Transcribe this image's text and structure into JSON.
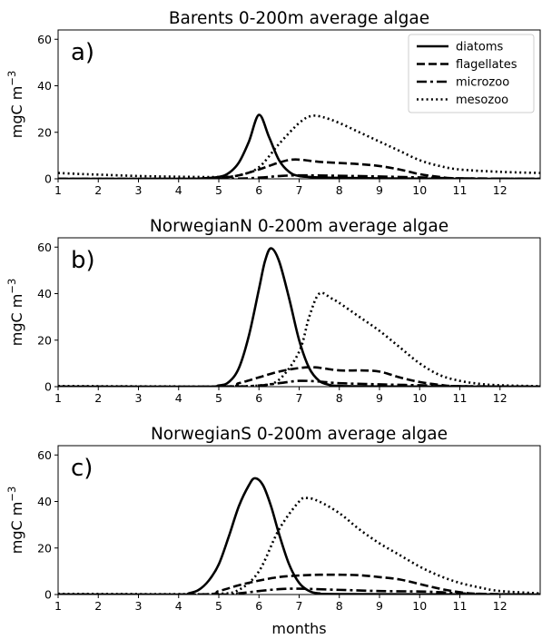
{
  "chart_data": [
    {
      "type": "line",
      "title": "Barents 0-200m average algae",
      "panel_label": "a)",
      "ylabel": "mgC m",
      "ylabel_exponent": "−3",
      "xlabel": "",
      "xlim": [
        1,
        13
      ],
      "ylim": [
        0,
        64
      ],
      "xticks": [
        "1",
        "2",
        "3",
        "4",
        "5",
        "6",
        "7",
        "8",
        "9",
        "10",
        "11",
        "12"
      ],
      "yticks": [
        "0",
        "20",
        "40",
        "60"
      ],
      "legend_position": "top-right",
      "series": [
        {
          "name": "diatoms",
          "style": "solid",
          "points": [
            [
              1,
              0
            ],
            [
              4,
              0
            ],
            [
              4.5,
              0.1
            ],
            [
              5,
              0.8
            ],
            [
              5.25,
              2.5
            ],
            [
              5.5,
              7
            ],
            [
              5.75,
              16
            ],
            [
              6.0,
              27.5
            ],
            [
              6.25,
              18
            ],
            [
              6.5,
              8
            ],
            [
              6.75,
              3
            ],
            [
              7,
              1.2
            ],
            [
              7.5,
              0.6
            ],
            [
              8,
              0.4
            ],
            [
              9,
              0.2
            ],
            [
              10,
              0.1
            ],
            [
              11,
              0
            ],
            [
              13,
              0
            ]
          ]
        },
        {
          "name": "flagellates",
          "style": "dashed",
          "points": [
            [
              1,
              0
            ],
            [
              4,
              0
            ],
            [
              5,
              0.4
            ],
            [
              5.5,
              1.5
            ],
            [
              6,
              4
            ],
            [
              6.5,
              7
            ],
            [
              6.9,
              8.3
            ],
            [
              7.5,
              7.3
            ],
            [
              8,
              6.8
            ],
            [
              8.5,
              6.3
            ],
            [
              9,
              5.5
            ],
            [
              9.5,
              4
            ],
            [
              10,
              2
            ],
            [
              10.5,
              0.8
            ],
            [
              11,
              0.2
            ],
            [
              13,
              0
            ]
          ]
        },
        {
          "name": "microzoo",
          "style": "dashdot",
          "points": [
            [
              1,
              0
            ],
            [
              5,
              0
            ],
            [
              6,
              0.5
            ],
            [
              6.5,
              1.2
            ],
            [
              7,
              1.5
            ],
            [
              8,
              1.3
            ],
            [
              9,
              1
            ],
            [
              10,
              0.6
            ],
            [
              11,
              0.2
            ],
            [
              13,
              0
            ]
          ]
        },
        {
          "name": "mesozoo",
          "style": "dotted",
          "points": [
            [
              1,
              2.5
            ],
            [
              1.5,
              2.1
            ],
            [
              2,
              1.8
            ],
            [
              3,
              1.2
            ],
            [
              4,
              0.9
            ],
            [
              5,
              0.8
            ],
            [
              5.5,
              1.5
            ],
            [
              6,
              5
            ],
            [
              6.5,
              15
            ],
            [
              7,
              24
            ],
            [
              7.3,
              27
            ],
            [
              7.6,
              26.5
            ],
            [
              8,
              24
            ],
            [
              8.5,
              20
            ],
            [
              9,
              16
            ],
            [
              9.5,
              12
            ],
            [
              10,
              8
            ],
            [
              10.5,
              5.5
            ],
            [
              11,
              4
            ],
            [
              12,
              3
            ],
            [
              13,
              2.5
            ]
          ]
        }
      ]
    },
    {
      "type": "line",
      "title": "NorwegianN 0-200m average algae",
      "panel_label": "b)",
      "ylabel": "mgC m",
      "ylabel_exponent": "−3",
      "xlabel": "",
      "xlim": [
        1,
        13
      ],
      "ylim": [
        0,
        64
      ],
      "xticks": [
        "1",
        "2",
        "3",
        "4",
        "5",
        "6",
        "7",
        "8",
        "9",
        "10",
        "11",
        "12"
      ],
      "yticks": [
        "0",
        "20",
        "40",
        "60"
      ],
      "series": [
        {
          "name": "diatoms",
          "style": "solid",
          "points": [
            [
              1,
              0
            ],
            [
              4.5,
              0
            ],
            [
              5,
              0.5
            ],
            [
              5.25,
              2
            ],
            [
              5.5,
              8
            ],
            [
              5.75,
              22
            ],
            [
              6,
              42
            ],
            [
              6.15,
              54
            ],
            [
              6.3,
              59.5
            ],
            [
              6.5,
              54
            ],
            [
              6.75,
              38
            ],
            [
              7,
              20
            ],
            [
              7.25,
              8
            ],
            [
              7.5,
              2.5
            ],
            [
              7.75,
              0.8
            ],
            [
              8,
              0.3
            ],
            [
              9,
              0.1
            ],
            [
              13,
              0
            ]
          ]
        },
        {
          "name": "flagellates",
          "style": "dashed",
          "points": [
            [
              1,
              0
            ],
            [
              5,
              0
            ],
            [
              5.5,
              1.5
            ],
            [
              6,
              4
            ],
            [
              6.5,
              6.5
            ],
            [
              7,
              8
            ],
            [
              7.4,
              8.3
            ],
            [
              8,
              7
            ],
            [
              8.5,
              7
            ],
            [
              9,
              6.5
            ],
            [
              9.5,
              4
            ],
            [
              10,
              2
            ],
            [
              10.5,
              0.8
            ],
            [
              11,
              0.2
            ],
            [
              13,
              0
            ]
          ]
        },
        {
          "name": "microzoo",
          "style": "dashdot",
          "points": [
            [
              1,
              0
            ],
            [
              5,
              0
            ],
            [
              6,
              0.5
            ],
            [
              6.5,
              1.5
            ],
            [
              7,
              2.5
            ],
            [
              7.5,
              2.2
            ],
            [
              8,
              1.5
            ],
            [
              9,
              1
            ],
            [
              10,
              0.6
            ],
            [
              11,
              0.2
            ],
            [
              13,
              0
            ]
          ]
        },
        {
          "name": "mesozoo",
          "style": "dotted",
          "points": [
            [
              1,
              0.3
            ],
            [
              2,
              0.2
            ],
            [
              4,
              0.1
            ],
            [
              5,
              0.1
            ],
            [
              6,
              0.5
            ],
            [
              6.5,
              3
            ],
            [
              7,
              15
            ],
            [
              7.25,
              30
            ],
            [
              7.5,
              40
            ],
            [
              7.8,
              38
            ],
            [
              8,
              36
            ],
            [
              8.5,
              30
            ],
            [
              9,
              24
            ],
            [
              9.5,
              17
            ],
            [
              10,
              10
            ],
            [
              10.5,
              5
            ],
            [
              11,
              2.5
            ],
            [
              11.5,
              1.2
            ],
            [
              12,
              0.6
            ],
            [
              13,
              0.2
            ]
          ]
        }
      ]
    },
    {
      "type": "line",
      "title": "NorwegianS 0-200m average algae",
      "panel_label": "c)",
      "ylabel": "mgC m",
      "ylabel_exponent": "−3",
      "xlabel": "months",
      "xlim": [
        1,
        13
      ],
      "ylim": [
        0,
        64
      ],
      "xticks": [
        "1",
        "2",
        "3",
        "4",
        "5",
        "6",
        "7",
        "8",
        "9",
        "10",
        "11",
        "12"
      ],
      "yticks": [
        "0",
        "20",
        "40",
        "60"
      ],
      "series": [
        {
          "name": "diatoms",
          "style": "solid",
          "points": [
            [
              1,
              0
            ],
            [
              4,
              0
            ],
            [
              4.25,
              0.5
            ],
            [
              4.5,
              2
            ],
            [
              4.75,
              6
            ],
            [
              5,
              13
            ],
            [
              5.25,
              25
            ],
            [
              5.5,
              38
            ],
            [
              5.75,
              47
            ],
            [
              5.9,
              50
            ],
            [
              6.1,
              47
            ],
            [
              6.3,
              38
            ],
            [
              6.5,
              26
            ],
            [
              6.75,
              13
            ],
            [
              7,
              5
            ],
            [
              7.25,
              1.5
            ],
            [
              7.5,
              0.5
            ],
            [
              8,
              0.2
            ],
            [
              13,
              0
            ]
          ]
        },
        {
          "name": "flagellates",
          "style": "dashed",
          "points": [
            [
              1,
              0
            ],
            [
              4.5,
              0
            ],
            [
              5,
              1.5
            ],
            [
              5.5,
              4
            ],
            [
              6,
              6
            ],
            [
              6.5,
              7.5
            ],
            [
              7,
              8.2
            ],
            [
              7.5,
              8.5
            ],
            [
              8,
              8.5
            ],
            [
              8.5,
              8.3
            ],
            [
              9,
              7.5
            ],
            [
              9.5,
              6.5
            ],
            [
              10,
              4.5
            ],
            [
              10.5,
              2.5
            ],
            [
              11,
              1
            ],
            [
              11.5,
              0.3
            ],
            [
              13,
              0
            ]
          ]
        },
        {
          "name": "microzoo",
          "style": "dashdot",
          "points": [
            [
              1,
              0
            ],
            [
              5,
              0
            ],
            [
              5.5,
              0.5
            ],
            [
              6,
              1.5
            ],
            [
              6.5,
              2.3
            ],
            [
              7,
              2.5
            ],
            [
              8,
              2
            ],
            [
              9,
              1.5
            ],
            [
              10,
              1.3
            ],
            [
              10.5,
              1
            ],
            [
              11,
              0.5
            ],
            [
              12,
              0.1
            ],
            [
              13,
              0
            ]
          ]
        },
        {
          "name": "mesozoo",
          "style": "dotted",
          "points": [
            [
              1,
              0.3
            ],
            [
              3,
              0.2
            ],
            [
              4,
              0.2
            ],
            [
              5,
              0.3
            ],
            [
              5.5,
              2
            ],
            [
              6,
              10
            ],
            [
              6.5,
              28
            ],
            [
              7,
              40
            ],
            [
              7.2,
              41.5
            ],
            [
              7.5,
              40
            ],
            [
              8,
              35
            ],
            [
              8.5,
              28
            ],
            [
              9,
              22
            ],
            [
              9.5,
              17
            ],
            [
              10,
              12
            ],
            [
              10.5,
              8
            ],
            [
              11,
              5
            ],
            [
              11.5,
              3
            ],
            [
              12,
              1.5
            ],
            [
              13,
              0.5
            ]
          ]
        }
      ]
    }
  ]
}
